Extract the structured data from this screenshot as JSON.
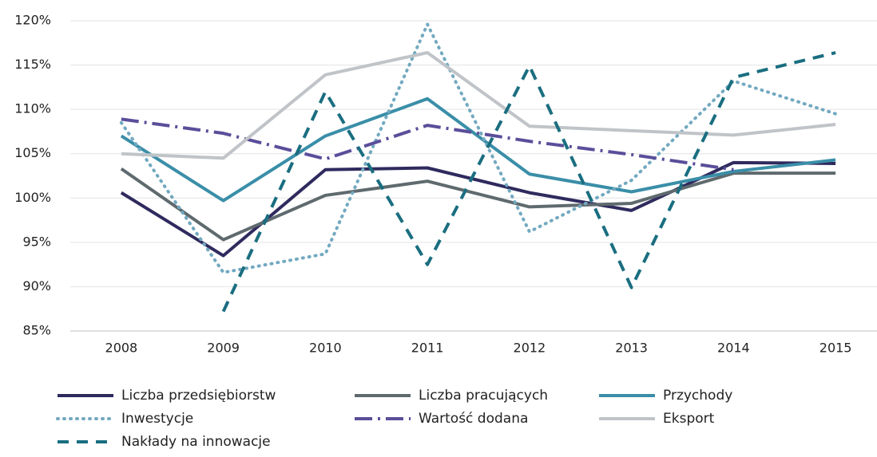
{
  "chart_data": {
    "type": "line",
    "categories": [
      "2008",
      "2009",
      "2010",
      "2011",
      "2012",
      "2013",
      "2014",
      "2015"
    ],
    "ylim": [
      85,
      120
    ],
    "yticks": [
      {
        "value": 85,
        "label": "85%"
      },
      {
        "value": 90,
        "label": "90%"
      },
      {
        "value": 95,
        "label": "95%"
      },
      {
        "value": 100,
        "label": "100%"
      },
      {
        "value": 105,
        "label": "105%"
      },
      {
        "value": 110,
        "label": "110%"
      },
      {
        "value": 115,
        "label": "115%"
      },
      {
        "value": 120,
        "label": "120%"
      }
    ],
    "grid": true,
    "legend": "bottom",
    "series": [
      {
        "name": "Liczba przedsiębiorstw",
        "color": "#2f2a5e",
        "dash": "solid",
        "values": [
          100.6,
          93.5,
          103.2,
          103.4,
          100.6,
          98.6,
          104.0,
          103.9
        ]
      },
      {
        "name": "Liczba pracujących",
        "color": "#5f6a6e",
        "dash": "solid",
        "values": [
          103.3,
          95.3,
          100.3,
          101.9,
          99.0,
          99.4,
          102.8,
          102.8
        ]
      },
      {
        "name": "Przychody",
        "color": "#3a8ea8",
        "dash": "solid",
        "values": [
          107.0,
          99.7,
          107.0,
          111.2,
          102.7,
          100.7,
          103.0,
          104.3
        ]
      },
      {
        "name": "Inwestycje",
        "color": "#72a9c0",
        "dash": "dot",
        "values": [
          108.5,
          91.6,
          93.7,
          119.6,
          96.2,
          102.0,
          113.2,
          109.5
        ]
      },
      {
        "name": "Wartość dodana",
        "color": "#5a4e9a",
        "dash": "dashdot",
        "values": [
          108.9,
          107.3,
          104.4,
          108.2,
          106.4,
          104.9,
          103.2,
          null
        ]
      },
      {
        "name": "Eksport",
        "color": "#c0c4c8",
        "dash": "solid",
        "values": [
          105.0,
          104.5,
          113.9,
          116.4,
          108.1,
          107.6,
          107.1,
          108.3
        ]
      },
      {
        "name": "Nakłady na innowacje",
        "color": "#1a6e80",
        "dash": "dash",
        "values": [
          null,
          87.2,
          112.0,
          92.5,
          114.9,
          89.9,
          113.6,
          116.4
        ]
      }
    ]
  }
}
